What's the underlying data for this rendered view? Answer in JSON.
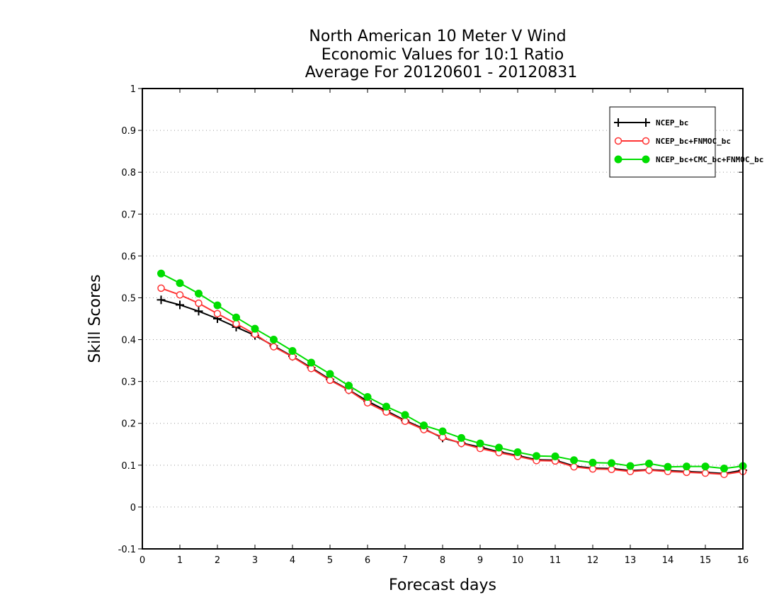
{
  "chart_data": {
    "type": "line",
    "title_lines": [
      "North American 10 Meter V Wind",
      "Economic Values for 10:1 Ratio",
      "Average For 20120601 - 20120831"
    ],
    "xlabel": "Forecast days",
    "ylabel": "Skill Scores",
    "xlim": [
      0,
      16
    ],
    "ylim": [
      -0.1,
      1
    ],
    "x_ticks": [
      0,
      1,
      2,
      3,
      4,
      5,
      6,
      7,
      8,
      9,
      10,
      11,
      12,
      13,
      14,
      15,
      16
    ],
    "y_ticks": [
      -0.1,
      0,
      0.1,
      0.2,
      0.3,
      0.4,
      0.5,
      0.6,
      0.7,
      0.8,
      0.9,
      1
    ],
    "y_tick_labels": [
      "-0.1",
      "0",
      "0.1",
      "0.2",
      "0.3",
      "0.4",
      "0.5",
      "0.6",
      "0.7",
      "0.8",
      "0.9",
      "1"
    ],
    "grid": "horizontal dotted",
    "legend_position": "top-right",
    "x": [
      0.5,
      1.0,
      1.5,
      2.0,
      2.5,
      3.0,
      3.5,
      4.0,
      4.5,
      5.0,
      5.5,
      6.0,
      6.5,
      7.0,
      7.5,
      8.0,
      8.5,
      9.0,
      9.5,
      10.0,
      10.5,
      11.0,
      11.5,
      12.0,
      12.5,
      13.0,
      13.5,
      14.0,
      14.5,
      15.0,
      15.5,
      16.0
    ],
    "series": [
      {
        "name": "NCEP_bc",
        "color": "#000000",
        "marker": "plus",
        "values": [
          0.495,
          0.483,
          0.468,
          0.45,
          0.43,
          0.41,
          0.385,
          0.36,
          0.333,
          0.305,
          0.28,
          0.253,
          0.23,
          0.207,
          0.187,
          0.165,
          0.153,
          0.143,
          0.132,
          0.123,
          0.113,
          0.112,
          0.098,
          0.093,
          0.092,
          0.087,
          0.089,
          0.087,
          0.085,
          0.083,
          0.08,
          0.088
        ]
      },
      {
        "name": "NCEP_bc+FNMOC_bc",
        "color": "#ff3333",
        "marker": "open-circle",
        "values": [
          0.523,
          0.507,
          0.487,
          0.462,
          0.438,
          0.413,
          0.383,
          0.359,
          0.331,
          0.303,
          0.279,
          0.249,
          0.227,
          0.205,
          0.185,
          0.167,
          0.152,
          0.14,
          0.13,
          0.121,
          0.111,
          0.11,
          0.096,
          0.091,
          0.09,
          0.085,
          0.088,
          0.085,
          0.083,
          0.081,
          0.078,
          0.085
        ]
      },
      {
        "name": "NCEP_bc+CMC_bc+FNMOC_bc",
        "color": "#00dd00",
        "marker": "filled-circle",
        "values": [
          0.558,
          0.535,
          0.51,
          0.482,
          0.453,
          0.426,
          0.4,
          0.373,
          0.345,
          0.318,
          0.29,
          0.263,
          0.24,
          0.22,
          0.195,
          0.181,
          0.165,
          0.152,
          0.142,
          0.131,
          0.122,
          0.121,
          0.112,
          0.106,
          0.105,
          0.098,
          0.104,
          0.096,
          0.097,
          0.097,
          0.092,
          0.098
        ]
      }
    ]
  }
}
